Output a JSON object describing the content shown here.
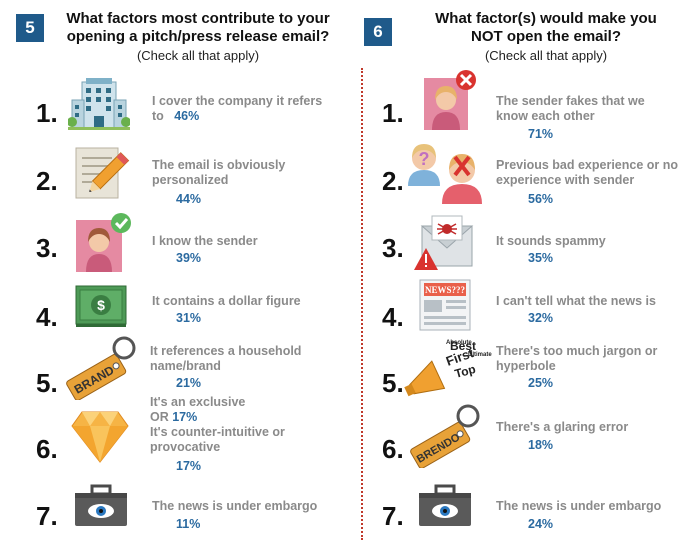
{
  "left": {
    "badge": "5",
    "title_line1": "What factors most contribute to your",
    "title_line2": "opening a pitch/press release email?",
    "subtitle": "(Check all that apply)",
    "items": [
      {
        "num": "1.",
        "text1": "I cover the company it refers",
        "text2": "to",
        "pct": "46%",
        "icon": "office-building-icon"
      },
      {
        "num": "2.",
        "text1": "The email is obviously",
        "text2": "personalized",
        "pct": "44%",
        "icon": "pencil-document-icon"
      },
      {
        "num": "3.",
        "text1": "I know the sender",
        "pct": "39%",
        "icon": "person-checkmark-icon"
      },
      {
        "num": "4.",
        "text1": "It contains a dollar figure",
        "pct": "31%",
        "icon": "dollar-bill-icon"
      },
      {
        "num": "5.",
        "text1": "It references a household",
        "text2": "name/brand",
        "pct": "21%",
        "icon": "brand-tag-icon"
      },
      {
        "num": "6.",
        "text1": "It's an exclusive",
        "text2": "OR",
        "pct2": "17%",
        "text3": "It's counter-intuitive or",
        "text4": "provocative",
        "pct": "17%",
        "icon": "diamond-gem-icon"
      },
      {
        "num": "7.",
        "text1": "The news is under embargo",
        "pct": "11%",
        "icon": "briefcase-eye-icon"
      }
    ]
  },
  "right": {
    "badge": "6",
    "title_line1": "What factor(s) would make you",
    "title_line2": "NOT open the email?",
    "subtitle": "(Check all that apply)",
    "items": [
      {
        "num": "1.",
        "text1": "The sender fakes that we",
        "text2": "know each other",
        "pct": "71%",
        "icon": "person-x-icon"
      },
      {
        "num": "2.",
        "text1": "Previous bad experience or no",
        "text2": "experience with sender",
        "pct": "56%",
        "icon": "question-x-people-icon"
      },
      {
        "num": "3.",
        "text1": "It sounds spammy",
        "pct": "35%",
        "icon": "spam-envelope-warning-icon"
      },
      {
        "num": "4.",
        "text1": "I can't tell what the news is",
        "pct": "32%",
        "icon": "newspaper-icon",
        "icon_text": "NEWS???"
      },
      {
        "num": "5.",
        "text1": "There's too much jargon or",
        "text2": "hyperbole",
        "pct": "25%",
        "icon": "megaphone-jargon-icon",
        "icon_words": [
          "Best",
          "First",
          "Top",
          "Absolute",
          "Ultimate"
        ]
      },
      {
        "num": "6.",
        "text1": "There's a glaring error",
        "pct": "18%",
        "icon": "brand-tag-error-icon",
        "icon_text": "BRENDO"
      },
      {
        "num": "7.",
        "text1": "The news is under embargo",
        "pct": "24%",
        "icon": "briefcase-eye-icon"
      }
    ]
  },
  "left_brand_tag_text": "BRAND",
  "colors": {
    "badge": "#1f5a8a",
    "percent": "#2b6aa0",
    "text": "#8a8a8a",
    "divider": "#c0392b"
  }
}
